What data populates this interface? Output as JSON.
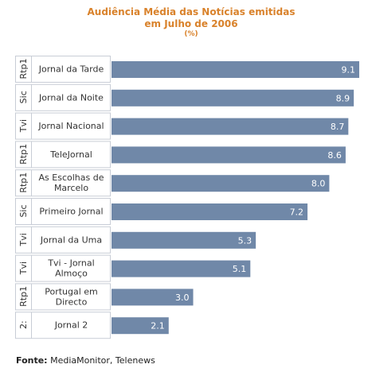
{
  "chart_data": {
    "type": "bar",
    "orientation": "horizontal",
    "title": [
      "Audiência Média das Notícias emitidas",
      "em Julho de 2006"
    ],
    "subtitle": "(%)",
    "channels": [
      "Rtp1",
      "Sic",
      "Tvi",
      "Rtp1",
      "Rtp1",
      "Sic",
      "Tvi",
      "Tvi",
      "Rtp1",
      "2:"
    ],
    "categories": [
      [
        "Jornal da Tarde"
      ],
      [
        "Jornal da Noite"
      ],
      [
        "Jornal Nacional"
      ],
      [
        "TeleJornal"
      ],
      [
        "As Escolhas de",
        "Marcelo"
      ],
      [
        "Primeiro Jornal"
      ],
      [
        "Jornal da Uma"
      ],
      [
        "Tvi - Jornal",
        "Almoço"
      ],
      [
        "Portugal em",
        "Directo"
      ],
      [
        "Jornal 2"
      ]
    ],
    "values": [
      9.1,
      8.9,
      8.7,
      8.6,
      8.0,
      7.2,
      5.3,
      5.1,
      3.0,
      2.1
    ],
    "value_labels": [
      "9.1",
      "8.9",
      "8.7",
      "8.6",
      "8.0",
      "7.2",
      "5.3",
      "5.1",
      "3.0",
      "2.1"
    ],
    "xlim": [
      0,
      9.1
    ],
    "bar_color": "#7088a8",
    "label_color": "#ffffff",
    "grid": false
  },
  "source": {
    "label": "Fonte:",
    "text": "MediaMonitor, Telenews"
  }
}
